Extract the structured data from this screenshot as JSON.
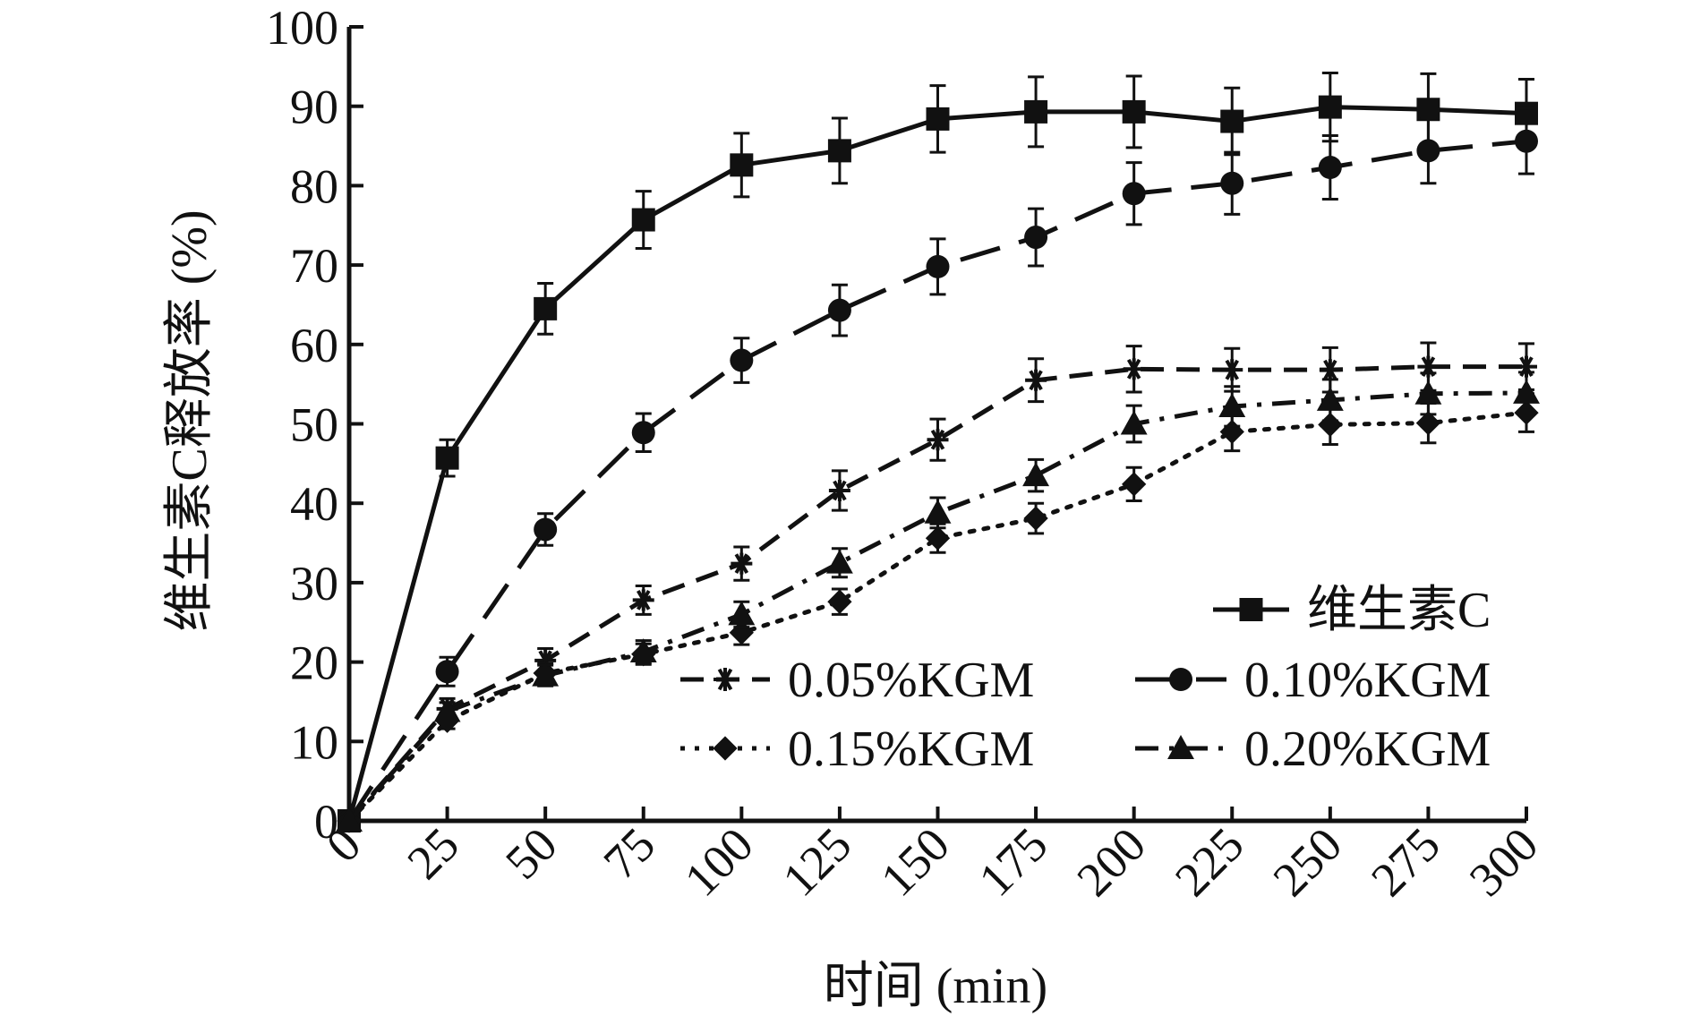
{
  "chart_data": {
    "type": "line",
    "title": "",
    "xlabel": "时间 (min)",
    "ylabel": "维生素C释放率 (%)",
    "xlim": [
      0,
      300
    ],
    "ylim": [
      0,
      100
    ],
    "xticks": [
      "0",
      "25",
      "50",
      "75",
      "100",
      "125",
      "150",
      "175",
      "200",
      "225",
      "250",
      "275",
      "300"
    ],
    "yticks": [
      "0",
      "10",
      "20",
      "30",
      "40",
      "50",
      "60",
      "70",
      "80",
      "90",
      "100"
    ],
    "x": [
      0,
      25,
      50,
      75,
      100,
      125,
      150,
      175,
      200,
      225,
      250,
      275,
      300
    ],
    "legend_position": "bottom-right",
    "series": [
      {
        "name": "维生素C",
        "marker": "square",
        "dash": "solid",
        "values": [
          0,
          45.7,
          64.5,
          75.7,
          82.6,
          84.4,
          88.4,
          89.3,
          89.3,
          88.1,
          89.9,
          89.6,
          89.1
        ],
        "errors": [
          0,
          2.3,
          3.2,
          3.6,
          4.0,
          4.1,
          4.2,
          4.4,
          4.5,
          4.2,
          4.3,
          4.5,
          4.3
        ]
      },
      {
        "name": "0.05%KGM",
        "marker": "star",
        "dash": "dash",
        "values": [
          0,
          14.1,
          20.2,
          27.8,
          32.4,
          41.6,
          48.0,
          55.5,
          56.9,
          56.8,
          56.8,
          57.2,
          57.2
        ],
        "errors": [
          0,
          1.3,
          1.5,
          1.8,
          2.1,
          2.5,
          2.6,
          2.7,
          2.9,
          2.7,
          2.8,
          3.0,
          2.9
        ]
      },
      {
        "name": "0.10%KGM",
        "marker": "circle",
        "dash": "longdash",
        "values": [
          0,
          18.8,
          36.7,
          48.9,
          58.0,
          64.3,
          69.8,
          73.5,
          79.0,
          80.3,
          82.3,
          84.4,
          85.6
        ],
        "errors": [
          0,
          1.8,
          2.0,
          2.4,
          2.8,
          3.2,
          3.5,
          3.6,
          3.9,
          3.9,
          4.0,
          4.1,
          4.1
        ]
      },
      {
        "name": "0.15%KGM",
        "marker": "diamond",
        "dash": "dot",
        "values": [
          0,
          12.6,
          18.6,
          21.0,
          23.7,
          27.6,
          35.6,
          38.1,
          42.4,
          49.0,
          49.9,
          50.1,
          51.4
        ],
        "errors": [
          0,
          1.0,
          1.2,
          1.3,
          1.5,
          1.6,
          1.8,
          1.9,
          2.1,
          2.4,
          2.5,
          2.5,
          2.4
        ]
      },
      {
        "name": "0.20%KGM",
        "marker": "triangle",
        "dash": "dashdot",
        "values": [
          0,
          13.8,
          18.3,
          21.3,
          26.0,
          32.5,
          38.8,
          43.5,
          50.0,
          52.2,
          53.0,
          53.8,
          53.9
        ],
        "errors": [
          0,
          1.1,
          1.3,
          1.4,
          1.6,
          1.8,
          1.9,
          2.0,
          2.3,
          2.5,
          2.6,
          2.6,
          2.6
        ]
      }
    ]
  }
}
